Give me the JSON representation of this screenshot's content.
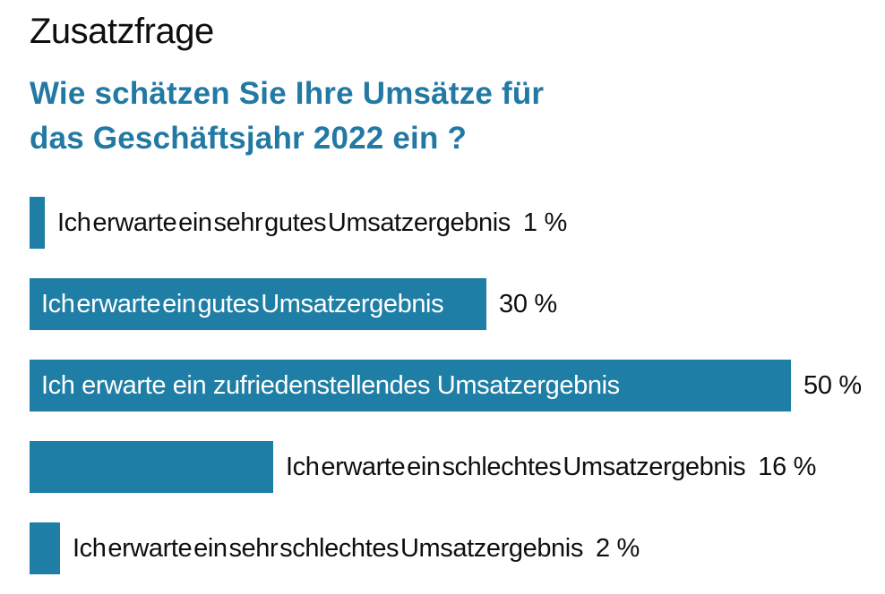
{
  "header": {
    "kicker": "Zusatzfrage",
    "question_line1": "Wie schätzen Sie Ihre Umsätze für",
    "question_line2": "das Geschäftsjahr 2022 ein ?"
  },
  "colors": {
    "bar": "#1F7EA5",
    "question_text": "#2279A3",
    "kicker_text": "#0F0F0F",
    "outside_label_text": "#0F0F0F",
    "inside_label_text": "#FFFFFF",
    "background": "#FFFFFF"
  },
  "chart_data": {
    "type": "bar",
    "orientation": "horizontal",
    "unit": "%",
    "xlim": [
      0,
      50
    ],
    "grid": false,
    "legend": false,
    "title": "Wie schätzen Sie Ihre Umsätze für das Geschäftsjahr 2022 ein ?",
    "categories": [
      "Ich erwarte ein sehr gutes Umsatzergebnis",
      "Ich erwarte ein gutes Umsatzergebnis",
      "Ich erwarte ein zufriedenstellendes Umsatzergebnis",
      "Ich erwarte ein schlechtes Umsatzergebnis",
      "Ich erwarte ein sehr schlechtes Umsatzergebnis"
    ],
    "values": [
      1,
      30,
      50,
      16,
      2
    ],
    "value_labels": [
      "1 %",
      "30 %",
      "50 %",
      "16 %",
      "2 %"
    ],
    "bars": [
      {
        "label": "Ich erwarte ein sehr gutes Umsatzergebnis",
        "value": 1,
        "value_label": "1 %",
        "label_inside": false,
        "tight_spacing": true
      },
      {
        "label": "Ich erwarte ein gutes Umsatzergebnis",
        "value": 30,
        "value_label": "30 %",
        "label_inside": true,
        "tight_spacing": true
      },
      {
        "label": "Ich erwarte ein zufriedenstellendes Umsatzergebnis",
        "value": 50,
        "value_label": "50 %",
        "label_inside": true,
        "tight_spacing": false
      },
      {
        "label": "Ich erwarte ein schlechtes Umsatzergebnis",
        "value": 16,
        "value_label": "16 %",
        "label_inside": false,
        "tight_spacing": true
      },
      {
        "label": "Ich erwarte ein sehr schlechtes Umsatzergebnis",
        "value": 2,
        "value_label": "2 %",
        "label_inside": false,
        "tight_spacing": true
      }
    ]
  }
}
